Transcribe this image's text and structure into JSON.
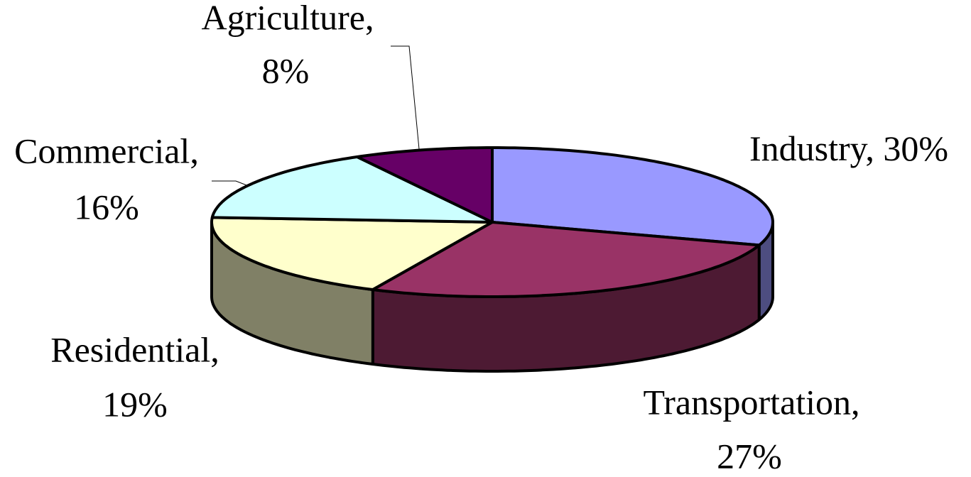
{
  "chart_data": {
    "type": "pie3d",
    "categories": [
      "Industry,",
      "Transportation,",
      "Residential,",
      "Commercial,",
      "Agriculture,"
    ],
    "values": [
      30,
      27,
      19,
      16,
      8
    ],
    "value_labels": [
      "30%",
      "27%",
      "19%",
      "16%",
      "8%"
    ],
    "colors": [
      "#9999ff",
      "#993366",
      "#ffffcc",
      "#ccffff",
      "#660066"
    ]
  }
}
